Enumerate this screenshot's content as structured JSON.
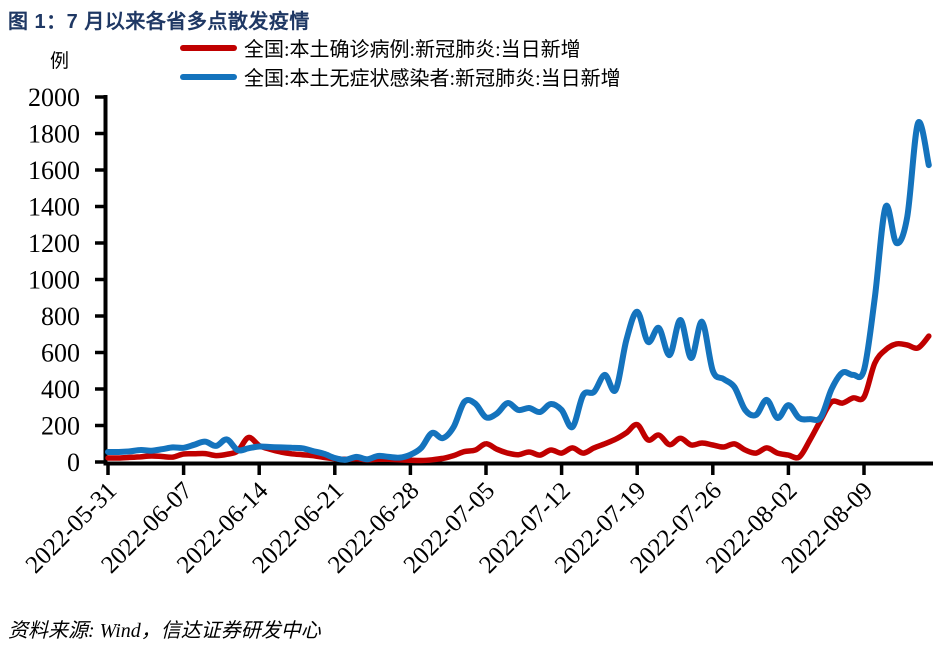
{
  "title": "图 1：7 月以来各省多点散发疫情",
  "unit_label": "例",
  "source": "资料来源: Wind，信达证券研发中心",
  "colors": {
    "title": "#1f3864",
    "confirmed": "#c00000",
    "asymptomatic": "#1473bd",
    "axis": "#000000"
  },
  "legend": [
    {
      "label": "全国:本土确诊病例:新冠肺炎:当日新增",
      "color": "#c00000"
    },
    {
      "label": "全国:本土无症状感染者:新冠肺炎:当日新增",
      "color": "#1473bd"
    }
  ],
  "chart_data": {
    "type": "line",
    "title": "图 1：7 月以来各省多点散发疫情",
    "ylabel": "例",
    "ylim": [
      0,
      2000
    ],
    "ytick_step": 200,
    "grid": false,
    "legend_position": "top",
    "xticks": [
      "2022-05-31",
      "2022-06-07",
      "2022-06-14",
      "2022-06-21",
      "2022-06-28",
      "2022-07-05",
      "2022-07-12",
      "2022-07-19",
      "2022-07-26",
      "2022-08-02",
      "2022-08-09"
    ],
    "x": [
      "2022-05-31",
      "2022-06-01",
      "2022-06-02",
      "2022-06-03",
      "2022-06-04",
      "2022-06-05",
      "2022-06-06",
      "2022-06-07",
      "2022-06-08",
      "2022-06-09",
      "2022-06-10",
      "2022-06-11",
      "2022-06-12",
      "2022-06-13",
      "2022-06-14",
      "2022-06-15",
      "2022-06-16",
      "2022-06-17",
      "2022-06-18",
      "2022-06-19",
      "2022-06-20",
      "2022-06-21",
      "2022-06-22",
      "2022-06-23",
      "2022-06-24",
      "2022-06-25",
      "2022-06-26",
      "2022-06-27",
      "2022-06-28",
      "2022-06-29",
      "2022-06-30",
      "2022-07-01",
      "2022-07-02",
      "2022-07-03",
      "2022-07-04",
      "2022-07-05",
      "2022-07-06",
      "2022-07-07",
      "2022-07-08",
      "2022-07-09",
      "2022-07-10",
      "2022-07-11",
      "2022-07-12",
      "2022-07-13",
      "2022-07-14",
      "2022-07-15",
      "2022-07-16",
      "2022-07-17",
      "2022-07-18",
      "2022-07-19",
      "2022-07-20",
      "2022-07-21",
      "2022-07-22",
      "2022-07-23",
      "2022-07-24",
      "2022-07-25",
      "2022-07-26",
      "2022-07-27",
      "2022-07-28",
      "2022-07-29",
      "2022-07-30",
      "2022-07-31",
      "2022-08-01",
      "2022-08-02",
      "2022-08-03",
      "2022-08-04",
      "2022-08-05",
      "2022-08-06",
      "2022-08-07",
      "2022-08-08",
      "2022-08-09",
      "2022-08-10",
      "2022-08-11",
      "2022-08-12",
      "2022-08-13",
      "2022-08-14",
      "2022-08-15"
    ],
    "series": [
      {
        "name": "全国:本土确诊病例:新冠肺炎:当日新增",
        "color": "#c00000",
        "values": [
          22,
          22,
          25,
          28,
          33,
          30,
          27,
          44,
          45,
          46,
          35,
          42,
          60,
          134,
          90,
          70,
          55,
          45,
          40,
          35,
          25,
          18,
          15,
          18,
          12,
          15,
          15,
          12,
          10,
          8,
          12,
          20,
          35,
          57,
          65,
          100,
          70,
          49,
          40,
          55,
          38,
          66,
          49,
          77,
          49,
          77,
          100,
          125,
          160,
          205,
          121,
          148,
          95,
          130,
          93,
          104,
          93,
          82,
          99,
          66,
          49,
          77,
          49,
          38,
          27,
          121,
          230,
          329,
          323,
          351,
          356,
          542,
          615,
          647,
          641,
          625,
          690
        ]
      },
      {
        "name": "全国:本土无症状感染者:新冠肺炎:当日新增",
        "color": "#1473bd",
        "values": [
          55,
          55,
          58,
          66,
          62,
          70,
          80,
          78,
          95,
          112,
          88,
          124,
          65,
          75,
          85,
          82,
          80,
          78,
          75,
          60,
          45,
          22,
          12,
          28,
          15,
          33,
          28,
          24,
          40,
          77,
          159,
          131,
          192,
          330,
          320,
          245,
          265,
          323,
          285,
          296,
          274,
          318,
          285,
          192,
          367,
          384,
          477,
          395,
          669,
          823,
          658,
          734,
          586,
          778,
          570,
          768,
          500,
          455,
          411,
          285,
          258,
          340,
          241,
          312,
          241,
          235,
          245,
          400,
          490,
          477,
          504,
          900,
          1397,
          1200,
          1342,
          1857,
          1627
        ]
      }
    ]
  }
}
